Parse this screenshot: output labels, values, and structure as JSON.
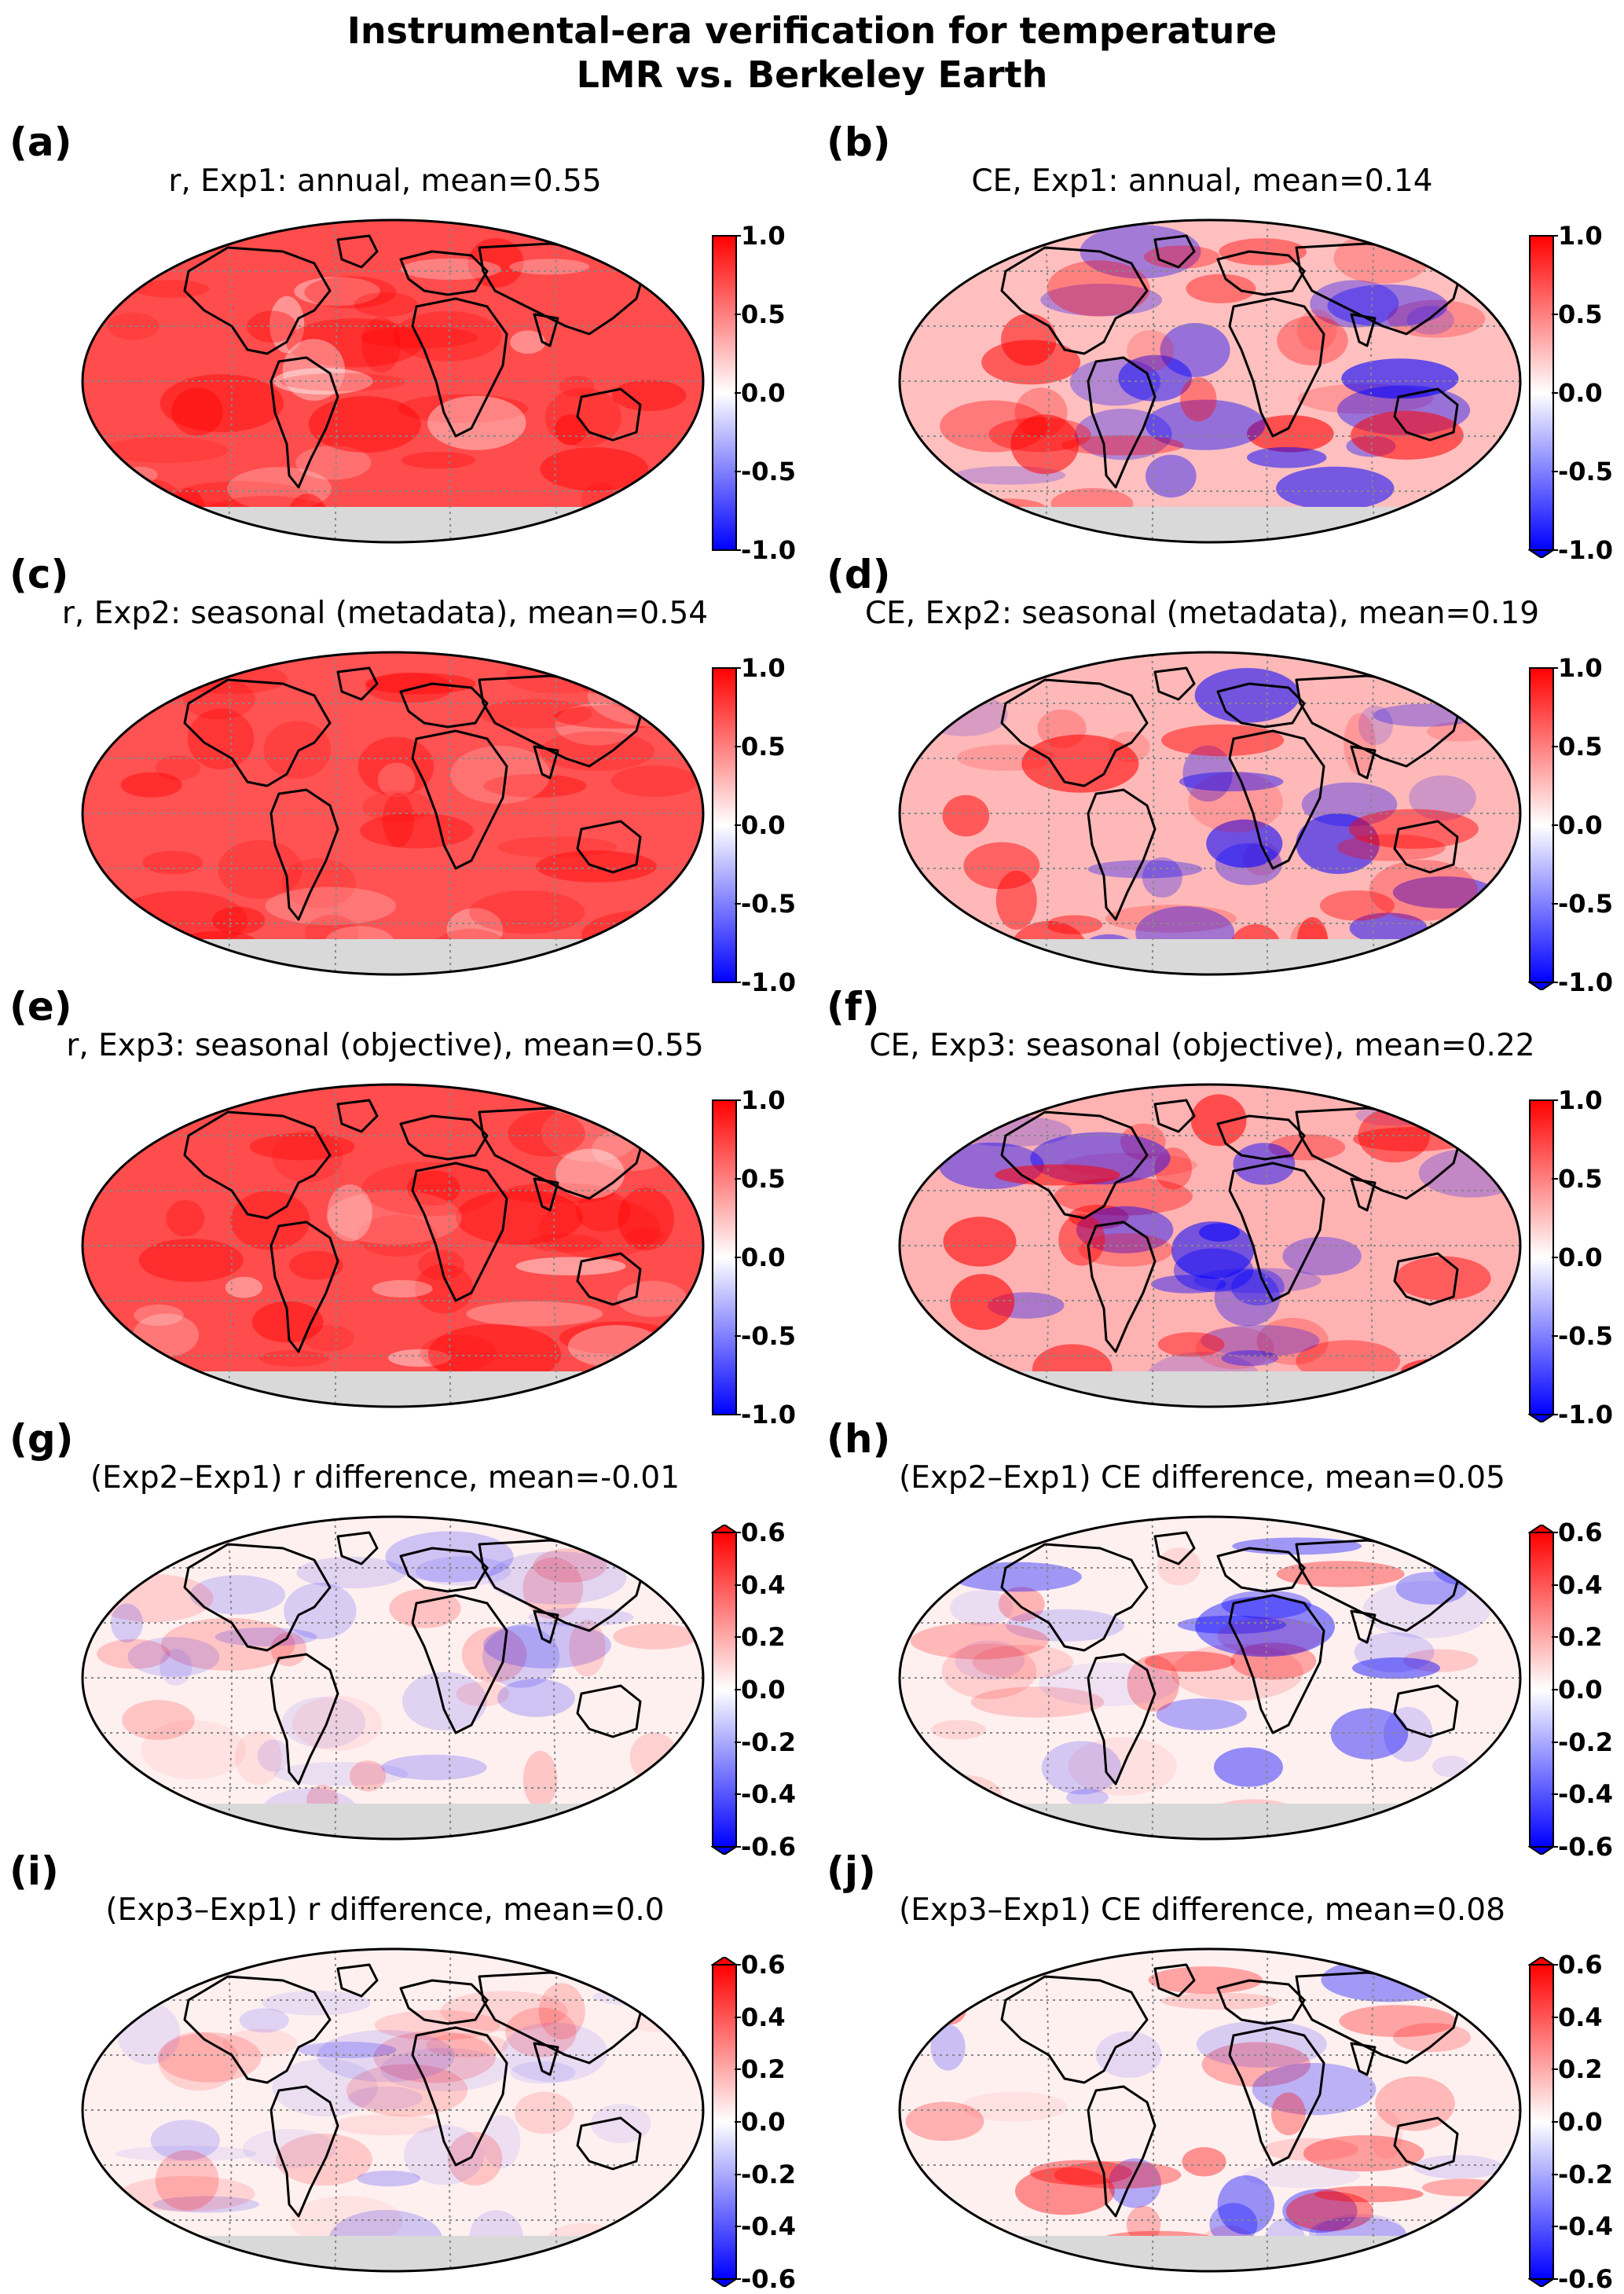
{
  "figure": {
    "title_line1": "Instrumental-era verification for temperature",
    "title_line2": "LMR vs. Berkeley Earth"
  },
  "panels": [
    {
      "letter": "(a)",
      "title": "r, Exp1: annual, mean=0.55",
      "kind": "r",
      "extend": "neither",
      "bias": 0.7
    },
    {
      "letter": "(b)",
      "title": "CE, Exp1: annual, mean=0.14",
      "kind": "ce",
      "extend": "min",
      "bias": 0.25
    },
    {
      "letter": "(c)",
      "title": "r, Exp2: seasonal (metadata), mean=0.54",
      "kind": "r",
      "extend": "neither",
      "bias": 0.68
    },
    {
      "letter": "(d)",
      "title": "CE, Exp2: seasonal (metadata), mean=0.19",
      "kind": "ce",
      "extend": "min",
      "bias": 0.28
    },
    {
      "letter": "(e)",
      "title": "r, Exp3: seasonal (objective), mean=0.55",
      "kind": "r",
      "extend": "neither",
      "bias": 0.7
    },
    {
      "letter": "(f)",
      "title": "CE, Exp3: seasonal (objective), mean=0.22",
      "kind": "ce",
      "extend": "min",
      "bias": 0.3
    },
    {
      "letter": "(g)",
      "title": "(Exp2–Exp1) r difference, mean=-0.01",
      "kind": "diff",
      "extend": "both",
      "bias": 0.0
    },
    {
      "letter": "(h)",
      "title": "(Exp2–Exp1) CE difference, mean=0.05",
      "kind": "diff",
      "extend": "both",
      "bias": 0.12
    },
    {
      "letter": "(i)",
      "title": "(Exp3–Exp1) r difference, mean=0.0",
      "kind": "diff",
      "extend": "both",
      "bias": 0.02
    },
    {
      "letter": "(j)",
      "title": "(Exp3–Exp1) CE difference, mean=0.08",
      "kind": "diff",
      "extend": "both",
      "bias": 0.15
    }
  ],
  "colorbars": {
    "full": {
      "ticks": [
        "1.0",
        "0.5",
        "0.0",
        "-0.5",
        "-1.0"
      ],
      "min": -1.0,
      "max": 1.0
    },
    "diff": {
      "ticks": [
        "0.6",
        "0.4",
        "0.2",
        "0.0",
        "-0.2",
        "-0.4",
        "-0.6"
      ],
      "min": -0.6,
      "max": 0.6
    }
  },
  "colors": {
    "negative": "#0000ff",
    "neutral": "#ffffff",
    "positive": "#ff0000",
    "land_mask": "#d9d9d9",
    "coast": "#000000",
    "grid": "#888888"
  }
}
